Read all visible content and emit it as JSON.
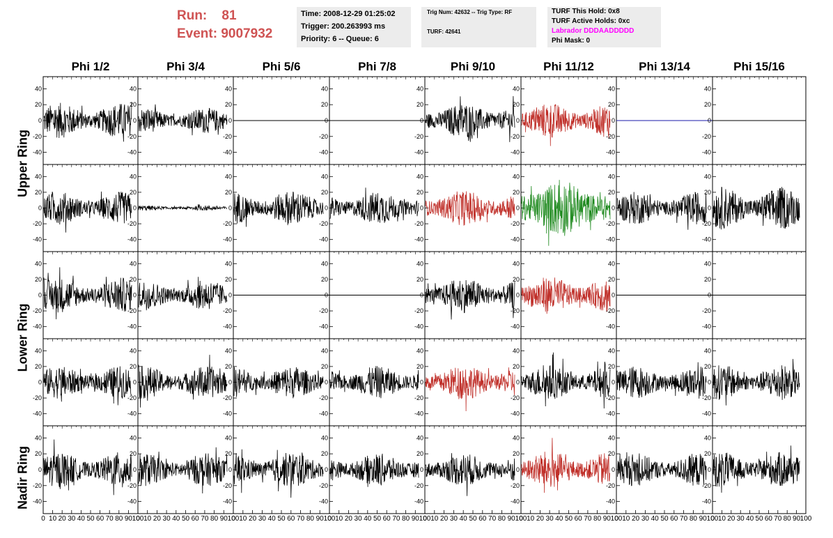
{
  "run_info": {
    "run_label": "Run:",
    "run_value": "81",
    "event_label": "Event:",
    "event_value": "9007932"
  },
  "event_box": {
    "time": "Time: 2008-12-29 01:25:02",
    "trigger": "Trigger: 200.263993 ms",
    "priority": "Priority: 6 -- Queue: 6"
  },
  "trig_box": {
    "trig": "Trig Num: 42632 -- Trig Type: RF",
    "turf": "TURF: 42641"
  },
  "turf_box": {
    "this_hold": "TURF This Hold: 0x8",
    "active_holds": "TURF Active Holds: 0xc",
    "labrador": "Labrador DDDAADDDDD",
    "phi_mask": "Phi Mask: 0"
  },
  "columns": [
    "Phi 1/2",
    "Phi 3/4",
    "Phi 5/6",
    "Phi 7/8",
    "Phi 9/10",
    "Phi 11/12",
    "Phi 13/14",
    "Phi 15/16"
  ],
  "rings": [
    "Upper Ring",
    "Lower Ring",
    "Nadir Ring"
  ],
  "colors": {
    "normal": "#000000",
    "triggered": "#c0302a",
    "highlight": "#1f8a1f",
    "flat": "#1a1aa8",
    "run_text": "#cf5353",
    "labrador": "#ff00ff"
  },
  "chart_data": {
    "type": "line",
    "description_rows": 5,
    "ylim": [
      -50,
      50
    ],
    "xlim": [
      0,
      100
    ],
    "y_ticks": [
      "40",
      "20",
      "0",
      "-20",
      "-40"
    ],
    "x_tick_labels": [
      "0",
      "10",
      "20",
      "30",
      "40",
      "50",
      "60",
      "70",
      "80",
      "90",
      "100"
    ],
    "panels": [
      [
        "wave:14",
        "wave:10",
        "flat",
        "flat",
        "wave:14",
        "red:14",
        "flatblue",
        "flat"
      ],
      [
        "wave:13",
        "wave:2",
        "wave:14",
        "wave:13",
        "red:14",
        "green:20",
        "wave:13",
        "wave:17"
      ],
      [
        "wave:14",
        "wave:12",
        "flat",
        "flat",
        "wave:14",
        "red:15",
        "flat",
        "flat"
      ],
      [
        "wave:13",
        "wave:13",
        "wave:13",
        "wave:13",
        "red:14",
        "wave:14",
        "wave:13",
        "wave:14"
      ],
      [
        "wave:14",
        "wave:13",
        "wave:14",
        "wave:13",
        "wave:13",
        "red:15",
        "wave:13",
        "wave:14"
      ]
    ]
  }
}
